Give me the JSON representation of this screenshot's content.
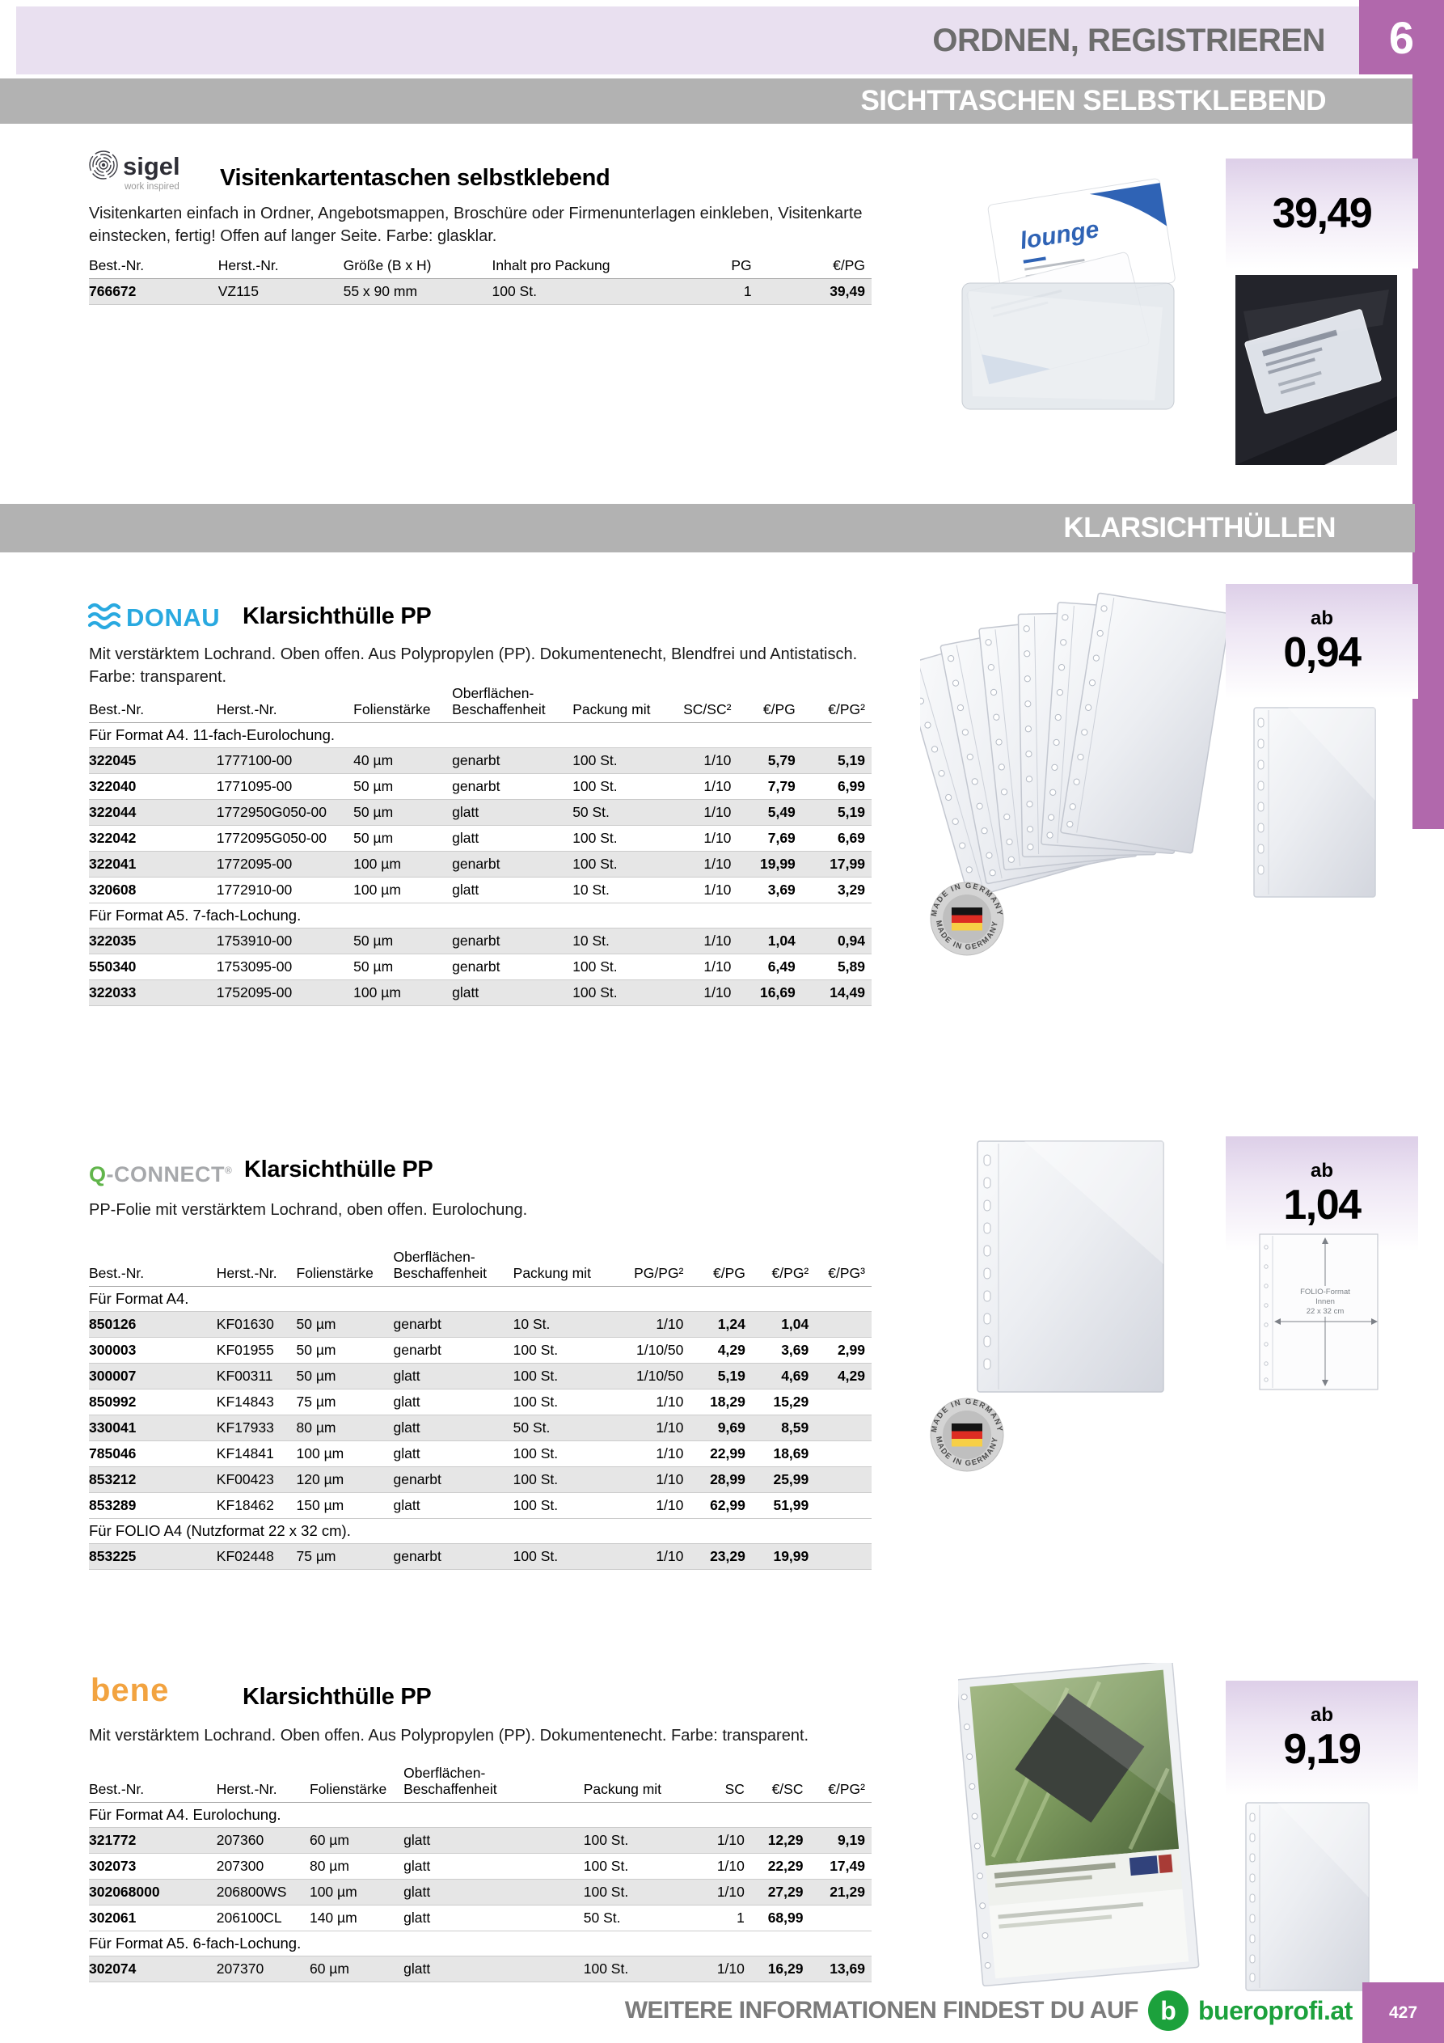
{
  "header": {
    "category_title": "ORDNEN, REGISTRIEREN",
    "chapter_number": "6",
    "section_banner": "SICHTTASCHEN SELBSTKLEBEND",
    "second_banner": "KLARSICHTHÜLLEN"
  },
  "colors": {
    "accent_purple": "#b168ac",
    "band_lavender": "#e9e0f0",
    "banner_gray": "#b2b2b2",
    "donau_blue": "#29a9e0",
    "qconnect_green": "#61b54b",
    "bene_orange": "#f2a340",
    "bueroprofi_green": "#1ca13c",
    "row_shade": "#e6e6e6"
  },
  "badges": {
    "made_in_germany": "MADE IN GERMANY"
  },
  "products": {
    "sigel": {
      "brand": "sigel",
      "brand_tagline": "work inspired",
      "title": "Visitenkartentaschen selbstklebend",
      "description": "Visitenkarten einfach in Ordner, Angebotsmappen, Broschüre oder Firmenunterlagen einkleben, Visitenkarte einstecken, fertig! Offen auf langer Seite. Farbe: glasklar.",
      "price": "39,49",
      "card_label": "lounge",
      "table": {
        "headers": [
          "Best.-Nr.",
          "Herst.-Nr.",
          "Größe (B x H)",
          "Inhalt pro Packung",
          "PG",
          "€/PG"
        ],
        "aligns": [
          "l",
          "l",
          "l",
          "l",
          "r",
          "r"
        ],
        "bold": [
          true,
          false,
          false,
          false,
          false,
          true
        ],
        "widths": [
          16.5,
          16,
          19,
          24,
          10,
          14.5
        ],
        "sections": [
          {
            "label": "",
            "rows": [
              [
                "766672",
                "VZ115",
                "55 x 90 mm",
                "100 St.",
                "1",
                "39,49"
              ]
            ]
          }
        ]
      }
    },
    "donau": {
      "brand": "DONAU",
      "title": "Klarsichthülle PP",
      "description": "Mit verstärktem Lochrand. Oben offen. Aus Polypropylen (PP). Dokumentenecht, Blendfrei und Antistatisch.\nFarbe: transparent.",
      "price_prefix": "ab",
      "price": "0,94",
      "table": {
        "headers": [
          "Best.-Nr.",
          "Herst.-Nr.",
          "Folienstärke",
          "Oberflächen-\nBeschaffenheit",
          "Packung mit",
          "SC/SC²",
          "€/PG",
          "€/PG²"
        ],
        "aligns": [
          "l",
          "l",
          "l",
          "l",
          "l",
          "r",
          "r",
          "r"
        ],
        "bold": [
          true,
          false,
          false,
          false,
          false,
          false,
          true,
          true
        ],
        "widths": [
          16.3,
          17.5,
          12.6,
          15.4,
          11.8,
          9.3,
          8.2,
          8.9
        ],
        "sections": [
          {
            "label": "Für Format A4. 11-fach-Eurolochung.",
            "rows": [
              [
                "322045",
                "1777100-00",
                "40 µm",
                "genarbt",
                "100 St.",
                "1/10",
                "5,79",
                "5,19"
              ],
              [
                "322040",
                "1771095-00",
                "50 µm",
                "genarbt",
                "100 St.",
                "1/10",
                "7,79",
                "6,99"
              ],
              [
                "322044",
                "1772950G050-00",
                "50 µm",
                "glatt",
                "50 St.",
                "1/10",
                "5,49",
                "5,19"
              ],
              [
                "322042",
                "1772095G050-00",
                "50 µm",
                "glatt",
                "100 St.",
                "1/10",
                "7,69",
                "6,69"
              ],
              [
                "322041",
                "1772095-00",
                "100 µm",
                "genarbt",
                "100 St.",
                "1/10",
                "19,99",
                "17,99"
              ],
              [
                "320608",
                "1772910-00",
                "100 µm",
                "glatt",
                "10 St.",
                "1/10",
                "3,69",
                "3,29"
              ]
            ]
          },
          {
            "label": "Für Format A5. 7-fach-Lochung.",
            "rows": [
              [
                "322035",
                "1753910-00",
                "50 µm",
                "genarbt",
                "10 St.",
                "1/10",
                "1,04",
                "0,94"
              ],
              [
                "550340",
                "1753095-00",
                "50 µm",
                "genarbt",
                "100 St.",
                "1/10",
                "6,49",
                "5,89"
              ],
              [
                "322033",
                "1752095-00",
                "100 µm",
                "glatt",
                "100 St.",
                "1/10",
                "16,69",
                "14,49"
              ]
            ]
          }
        ]
      }
    },
    "qconnect": {
      "brand_q": "Q",
      "brand_rest": "-CONNECT",
      "reg_mark": "®",
      "title": "Klarsichthülle PP",
      "description": "PP-Folie mit verstärktem Lochrand, oben offen. Eurolochung.",
      "price_prefix": "ab",
      "price": "1,04",
      "diagram_labels": [
        "FOLIO-Format",
        "Innen",
        "22 x 32 cm"
      ],
      "table": {
        "headers": [
          "Best.-Nr.",
          "Herst.-Nr.",
          "Folienstärke",
          "Oberflächen-\nBeschaffenheit",
          "Packung mit",
          "PG/PG²",
          "€/PG",
          "€/PG²",
          "€/PG³"
        ],
        "aligns": [
          "l",
          "l",
          "l",
          "l",
          "l",
          "r",
          "r",
          "r",
          "r"
        ],
        "bold": [
          true,
          false,
          false,
          false,
          false,
          false,
          true,
          true,
          true
        ],
        "widths": [
          16.3,
          10.2,
          12.4,
          15.3,
          13.4,
          9.2,
          7.9,
          8.1,
          7.2
        ],
        "sections": [
          {
            "label": "Für Format A4.",
            "rows": [
              [
                "850126",
                "KF01630",
                "50 µm",
                "genarbt",
                "10 St.",
                "1/10",
                "1,24",
                "1,04",
                ""
              ],
              [
                "300003",
                "KF01955",
                "50 µm",
                "genarbt",
                "100 St.",
                "1/10/50",
                "4,29",
                "3,69",
                "2,99"
              ],
              [
                "300007",
                "KF00311",
                "50 µm",
                "glatt",
                "100 St.",
                "1/10/50",
                "5,19",
                "4,69",
                "4,29"
              ],
              [
                "850992",
                "KF14843",
                "75 µm",
                "glatt",
                "100 St.",
                "1/10",
                "18,29",
                "15,29",
                ""
              ],
              [
                "330041",
                "KF17933",
                "80 µm",
                "glatt",
                "50 St.",
                "1/10",
                "9,69",
                "8,59",
                ""
              ],
              [
                "785046",
                "KF14841",
                "100 µm",
                "glatt",
                "100 St.",
                "1/10",
                "22,99",
                "18,69",
                ""
              ],
              [
                "853212",
                "KF00423",
                "120 µm",
                "genarbt",
                "100 St.",
                "1/10",
                "28,99",
                "25,99",
                ""
              ],
              [
                "853289",
                "KF18462",
                "150 µm",
                "glatt",
                "100 St.",
                "1/10",
                "62,99",
                "51,99",
                ""
              ]
            ]
          },
          {
            "label": "Für FOLIO A4 (Nutzformat 22 x 32 cm).",
            "rows": [
              [
                "853225",
                "KF02448",
                "75 µm",
                "genarbt",
                "100 St.",
                "1/10",
                "23,29",
                "19,99",
                ""
              ]
            ]
          }
        ]
      }
    },
    "bene": {
      "brand": "bene",
      "title": "Klarsichthülle PP",
      "description": "Mit verstärktem Lochrand. Oben offen. Aus Polypropylen (PP). Dokumentenecht. Farbe: transparent.",
      "price_prefix": "ab",
      "price": "9,19",
      "table": {
        "headers": [
          "Best.-Nr.",
          "Herst.-Nr.",
          "Folienstärke",
          "Oberflächen-Beschaffenheit",
          "Packung mit",
          "SC",
          "€/SC",
          "€/PG²"
        ],
        "aligns": [
          "l",
          "l",
          "l",
          "l",
          "l",
          "r",
          "r",
          "r"
        ],
        "bold": [
          true,
          false,
          false,
          false,
          false,
          false,
          true,
          true
        ],
        "widths": [
          16.3,
          11.9,
          12,
          23,
          13.4,
          8,
          7.5,
          7.9
        ],
        "sections": [
          {
            "label": "Für Format A4. Eurolochung.",
            "rows": [
              [
                "321772",
                "207360",
                "60 µm",
                "glatt",
                "100 St.",
                "1/10",
                "12,29",
                "9,19"
              ],
              [
                "302073",
                "207300",
                "80 µm",
                "glatt",
                "100 St.",
                "1/10",
                "22,29",
                "17,49"
              ],
              [
                "302068000",
                "206800WS",
                "100 µm",
                "glatt",
                "100 St.",
                "1/10",
                "27,29",
                "21,29"
              ],
              [
                "302061",
                "206100CL",
                "140 µm",
                "glatt",
                "50 St.",
                "1",
                "68,99",
                ""
              ]
            ]
          },
          {
            "label": "Für Format A5. 6-fach-Lochung.",
            "rows": [
              [
                "302074",
                "207370",
                "60 µm",
                "glatt",
                "100 St.",
                "1/10",
                "16,29",
                "13,69"
              ]
            ]
          }
        ]
      }
    }
  },
  "footer": {
    "info_text": "WEITERE INFORMATIONEN FINDEST DU AUF",
    "brand_letter": "b",
    "site": "bueroprofi.at",
    "page_number": "427"
  }
}
